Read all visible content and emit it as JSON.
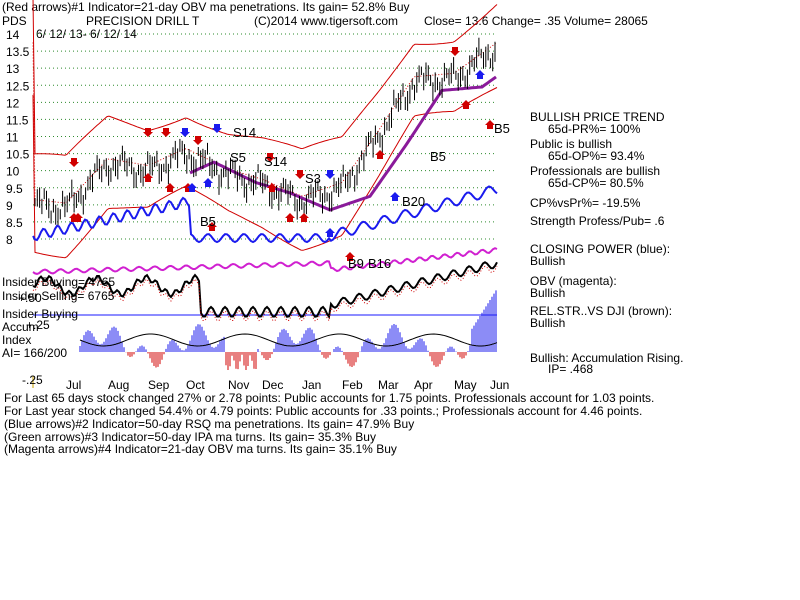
{
  "header": {
    "line1": "(Red arrows)#1 Indicator=21-day OBV ma penetrations. Its gain= 52.8% Buy",
    "pds": "PDS",
    "name": "PRECISION DRILL T",
    "copyright": "(C)2014 www.tigersoft.com",
    "quote": "Close=  13.6  Change= .35 Volume= 28065",
    "date_range": "6/ 12/ 13-  6/ 12/ 14"
  },
  "chart_data": {
    "type": "line",
    "title": "PRECISION DRILL T",
    "ylim": [
      7.75,
      14.25
    ],
    "y_ticks": [
      "14",
      "13.5",
      "13",
      "12.5",
      "12",
      "11.5",
      "11",
      "10.5",
      "10",
      "9.5",
      "9",
      "8.5",
      "8"
    ],
    "x_ticks": [
      "Jul",
      "Aug",
      "Sep",
      "Oct",
      "Nov",
      "Dec",
      "Jan",
      "Feb",
      "Mar",
      "Apr",
      "May",
      "Jun"
    ],
    "grid": true,
    "price_close_approx": [
      {
        "x": "Jun 2013",
        "y": 9.0
      },
      {
        "x": "Jul",
        "y": 8.9
      },
      {
        "x": "Aug",
        "y": 10.2
      },
      {
        "x": "Sep",
        "y": 10.0
      },
      {
        "x": "Oct",
        "y": 10.5
      },
      {
        "x": "Nov",
        "y": 9.9
      },
      {
        "x": "Dec",
        "y": 9.6
      },
      {
        "x": "Jan",
        "y": 9.1
      },
      {
        "x": "Feb",
        "y": 9.5
      },
      {
        "x": "Mar",
        "y": 11.0
      },
      {
        "x": "Apr",
        "y": 12.6
      },
      {
        "x": "May",
        "y": 12.7
      },
      {
        "x": "Jun 2014",
        "y": 13.6
      }
    ],
    "labels": [
      "S14",
      "S5",
      "S14",
      "S3",
      "B5",
      "B5",
      "B5",
      "B20",
      "B9",
      "B16"
    ],
    "lower_scale_labels": [
      "+.50",
      "+.25",
      "-.25"
    ]
  },
  "insider": {
    "buying": "Insider Buying= 4765",
    "selling": "Insider Selling= 6765",
    "buying2": "Insider Buying",
    "accum": "Accum",
    "index": "Index",
    "ai": "AI= 166/200"
  },
  "right_panel": {
    "trend_title": "BULLISH PRICE TREND",
    "pr": "65d-PR%= 100%",
    "public": "Public is bullish",
    "op": "65d-OP%= 93.4%",
    "pros": "Professionals are bullish",
    "cp": "65d-CP%= 80.5%",
    "cpvspr": "CP%vsPr%= -19.5%",
    "strength": "Strength Profess/Pub= .6",
    "closing_power": "CLOSING POWER (blue):",
    "closing_power_val": "Bullish",
    "obv": "OBV (magenta):",
    "obv_val": "Bullish",
    "relstr": "REL.STR..VS DJI (brown):",
    "relstr_val": "Bullish",
    "accum": "Bullish: Accumulation Rising.",
    "ip": "IP=  .468"
  },
  "footer": {
    "line1": "For Last 65 days stock changed  27% or  2.78 points:  Public accounts for  1.75 points.  Professionals account for  1.03 points.",
    "line2": "For Last year stock changed  54.4% or  4.79 points:  Public accounts for  .33 points.;  Professionals account for  4.46 points.",
    "line3": "(Blue arrows)#2 Indicator=50-day RSQ ma penetrations. Its gain= 47.9% Buy",
    "line4": "(Green arrows)#3 Indicator=50-day IPA ma turns. Its gain= 35.3% Buy",
    "line5": "(Magenta arrows)#4 Indicator=21-day OBV ma turns. Its gain= 35.1% Buy"
  }
}
